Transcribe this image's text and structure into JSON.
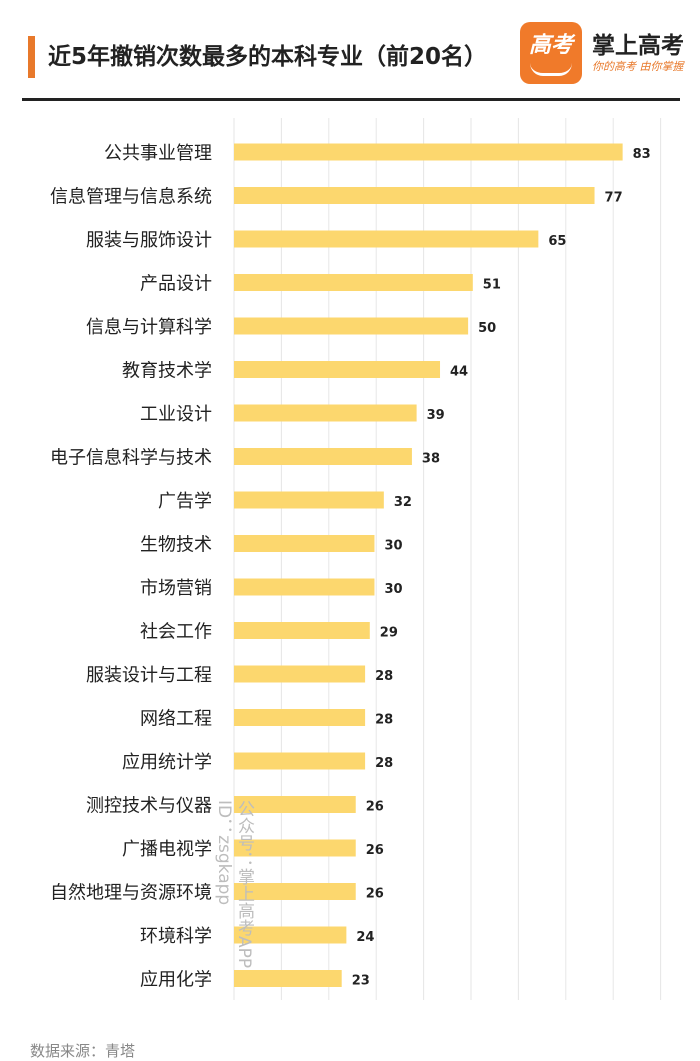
{
  "header": {
    "title": "近5年撤销次数最多的本科专业（前20名）",
    "brand_name": "掌上高考",
    "brand_slogan": "你的高考 由你掌握",
    "logo_glyph": "高考",
    "accent_color": "#e8792b",
    "logo_color": "#f07a2a"
  },
  "chart_data": {
    "type": "bar",
    "orientation": "horizontal",
    "categories": [
      "公共事业管理",
      "信息管理与信息系统",
      "服装与服饰设计",
      "产品设计",
      "信息与计算科学",
      "教育技术学",
      "工业设计",
      "电子信息科学与技术",
      "广告学",
      "生物技术",
      "市场营销",
      "社会工作",
      "服装设计与工程",
      "网络工程",
      "应用统计学",
      "测控技术与仪器",
      "广播电视学",
      "自然地理与资源环境",
      "环境科学",
      "应用化学"
    ],
    "values": [
      83,
      77,
      65,
      51,
      50,
      44,
      39,
      38,
      32,
      30,
      30,
      29,
      28,
      28,
      28,
      26,
      26,
      26,
      24,
      23
    ],
    "xlim": [
      0,
      85
    ],
    "grid": true,
    "bar_color": "#fcd76e",
    "grid_color": "#e6e6e6"
  },
  "watermark": {
    "line1": "公众号：掌上高考APP",
    "line2": "ID：zsgkapp"
  },
  "source": "数据来源：青塔"
}
